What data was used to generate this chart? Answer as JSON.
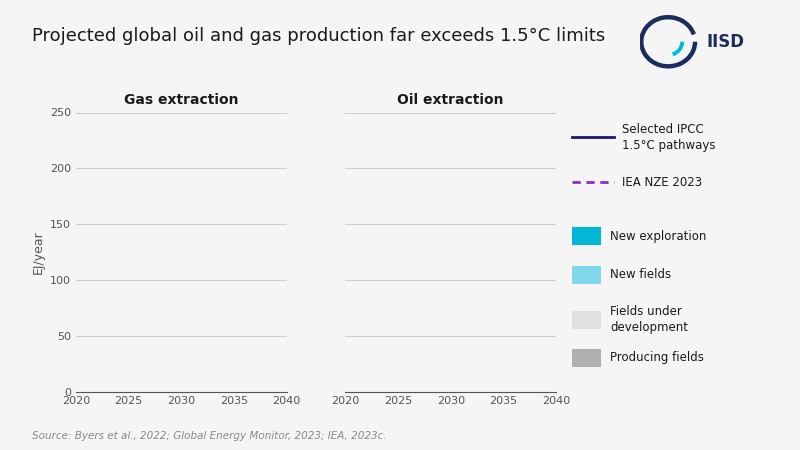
{
  "title": "Projected global oil and gas production far exceeds 1.5°C limits",
  "subtitle_gas": "Gas extraction",
  "subtitle_oil": "Oil extraction",
  "ylabel": "EJ/year",
  "source": "Source: Byers et al., 2022; Global Energy Monitor, 2023; IEA, 2023c.",
  "xlim": [
    2020,
    2040
  ],
  "ylim": [
    0,
    250
  ],
  "yticks": [
    0,
    50,
    100,
    150,
    200,
    250
  ],
  "xticks": [
    2020,
    2025,
    2030,
    2035,
    2040
  ],
  "background_color": "#f5f5f5",
  "plot_bg_color": "#f5f5f5",
  "grid_color": "#cccccc",
  "legend_items": [
    {
      "label": "Selected IPCC\n1.5°C pathways",
      "type": "line",
      "color": "#1a1a6e",
      "linestyle": "solid"
    },
    {
      "label": "IEA NZE 2023",
      "type": "line",
      "color": "#8b2fc9",
      "linestyle": "dashed"
    },
    {
      "label": "New exploration",
      "type": "patch",
      "color": "#00b8d4"
    },
    {
      "label": "New fields",
      "type": "patch",
      "color": "#80d8e8"
    },
    {
      "label": "Fields under\ndevelopment",
      "type": "patch",
      "color": "#e0e0e0"
    },
    {
      "label": "Producing fields",
      "type": "patch",
      "color": "#b0b0b0"
    }
  ],
  "title_fontsize": 13,
  "axis_label_fontsize": 9,
  "tick_fontsize": 8,
  "subtitle_fontsize": 10,
  "legend_fontsize": 8.5,
  "source_fontsize": 7.5,
  "title_color": "#1a1a1a",
  "tick_color": "#555555",
  "axis_color": "#555555",
  "iisd_outer_color": "#1a2e5e",
  "iisd_inner_color": "#00bcd4"
}
